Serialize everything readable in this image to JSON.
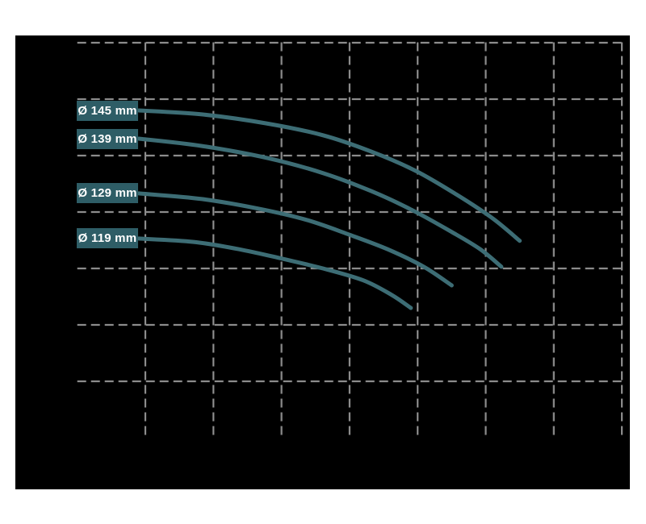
{
  "colors": {
    "page_background": "#ffffff",
    "plot_background": "#000000",
    "grid_line": "#8c8c8c",
    "curve_stroke": "#3d6d75",
    "label_background": "#2e5d66",
    "label_text": "#ffffff"
  },
  "chart_data": {
    "type": "line",
    "title": "",
    "xlabel": "",
    "ylabel": "",
    "axis_tick_labels_visible": false,
    "grid": "dashed",
    "legend_position": "inline-left-labels",
    "x_axis": {
      "range_divisions": [
        0,
        8.03
      ],
      "gridline_step": 1
    },
    "y_axis": {
      "range_divisions": [
        0,
        7
      ],
      "gridline_step": 1
    },
    "series": [
      {
        "id": "145",
        "label": "Ø 145 mm",
        "points": [
          [
            0.905,
            5.8
          ],
          [
            1.83,
            5.73
          ],
          [
            2.78,
            5.57
          ],
          [
            3.61,
            5.36
          ],
          [
            4.32,
            5.07
          ],
          [
            4.97,
            4.73
          ],
          [
            5.57,
            4.31
          ],
          [
            6.1,
            3.89
          ],
          [
            6.5,
            3.49
          ]
        ]
      },
      {
        "id": "139",
        "label": "Ø 139 mm",
        "points": [
          [
            0.905,
            5.3
          ],
          [
            1.83,
            5.17
          ],
          [
            2.78,
            4.96
          ],
          [
            3.61,
            4.69
          ],
          [
            4.32,
            4.37
          ],
          [
            4.91,
            4.04
          ],
          [
            5.51,
            3.64
          ],
          [
            5.92,
            3.34
          ],
          [
            6.23,
            3.03
          ]
        ]
      },
      {
        "id": "129",
        "label": "Ø 129 mm",
        "points": [
          [
            0.905,
            4.33
          ],
          [
            1.83,
            4.23
          ],
          [
            2.66,
            4.06
          ],
          [
            3.37,
            3.86
          ],
          [
            3.97,
            3.61
          ],
          [
            4.56,
            3.34
          ],
          [
            5.09,
            3.03
          ],
          [
            5.5,
            2.7
          ]
        ]
      },
      {
        "id": "119",
        "label": "Ø 119 mm",
        "points": [
          [
            0.905,
            3.53
          ],
          [
            1.71,
            3.47
          ],
          [
            2.42,
            3.33
          ],
          [
            3.02,
            3.17
          ],
          [
            3.61,
            3.0
          ],
          [
            4.2,
            2.79
          ],
          [
            4.62,
            2.53
          ],
          [
            4.9,
            2.3
          ]
        ]
      }
    ]
  }
}
